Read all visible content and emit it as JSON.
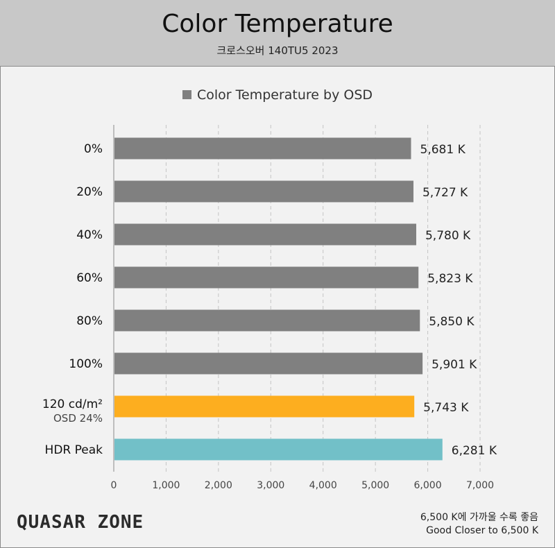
{
  "header": {
    "title": "Color Temperature",
    "subtitle": "크로스오버 140TU5 2023"
  },
  "logo": "QUASAR ZONE",
  "footnote": {
    "line1": "6,500 K에 가까울 수록 좋음",
    "line2": "Good Closer to 6,500 K"
  },
  "colors": {
    "default": "#808080",
    "highlight": "#fdae1f",
    "hdr": "#72c0c8",
    "header_bg": "#c8c8c8",
    "background": "#f2f2f2"
  },
  "chart_data": {
    "type": "bar",
    "orientation": "horizontal",
    "legend": "Color Temperature by OSD",
    "legend_position": "top",
    "categories": [
      "0%",
      "20%",
      "40%",
      "60%",
      "80%",
      "100%",
      "120 cd/m²",
      "HDR Peak"
    ],
    "category_sublabels": [
      "",
      "",
      "",
      "",
      "",
      "",
      "OSD 24%",
      ""
    ],
    "values": [
      5681,
      5727,
      5780,
      5823,
      5850,
      5901,
      5743,
      6281
    ],
    "value_labels": [
      "5,681 K",
      "5,727 K",
      "5,780 K",
      "5,823 K",
      "5,850 K",
      "5,901 K",
      "5,743 K",
      "6,281 K"
    ],
    "bar_colors": [
      "#808080",
      "#808080",
      "#808080",
      "#808080",
      "#808080",
      "#808080",
      "#fdae1f",
      "#72c0c8"
    ],
    "xlim": [
      0,
      7000
    ],
    "xticks": [
      0,
      1000,
      2000,
      3000,
      4000,
      5000,
      6000,
      7000
    ],
    "xtick_labels": [
      "0",
      "1,000",
      "2,000",
      "3,000",
      "4,000",
      "5,000",
      "6,000",
      "7,000"
    ],
    "grid": "vertical dashed"
  }
}
